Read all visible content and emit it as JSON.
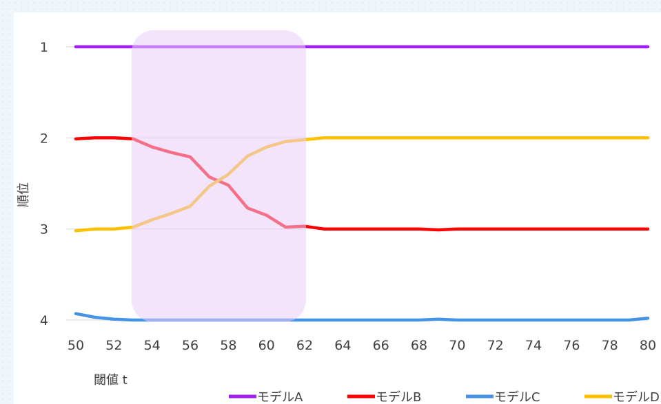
{
  "chart_data": {
    "type": "line",
    "xlabel": "閾値 t",
    "ylabel": "順位",
    "x": [
      50,
      51,
      52,
      53,
      54,
      55,
      56,
      57,
      58,
      59,
      60,
      61,
      62,
      63,
      64,
      65,
      66,
      67,
      68,
      69,
      70,
      71,
      72,
      73,
      74,
      75,
      76,
      77,
      78,
      79,
      80
    ],
    "xticks": [
      50,
      52,
      54,
      56,
      58,
      60,
      62,
      64,
      66,
      68,
      70,
      72,
      74,
      76,
      78,
      80
    ],
    "yticks": [
      1,
      2,
      3,
      4
    ],
    "ylim": [
      1,
      4
    ],
    "y_inverted": true,
    "grid": true,
    "legend_position": "bottom",
    "highlight_range": [
      53,
      62
    ],
    "highlight_color": "#e9ccf8",
    "series": [
      {
        "name": "モデルA",
        "color": "#a020f0",
        "values": [
          1,
          1,
          1,
          1,
          1,
          1,
          1,
          1,
          1,
          1,
          1,
          1,
          1,
          1,
          1,
          1,
          1,
          1,
          1,
          1,
          1,
          1,
          1,
          1,
          1,
          1,
          1,
          1,
          1,
          1,
          1
        ]
      },
      {
        "name": "モデルB",
        "color": "#ff0000",
        "values": [
          2.01,
          2.0,
          2.0,
          2.01,
          2.1,
          2.16,
          2.21,
          2.43,
          2.52,
          2.77,
          2.85,
          2.98,
          2.97,
          3.0,
          3.0,
          3.0,
          3.0,
          3.0,
          3.0,
          3.01,
          3.0,
          3.0,
          3.0,
          3.0,
          3.0,
          3.0,
          3.0,
          3.0,
          3.0,
          3.0,
          3.0
        ]
      },
      {
        "name": "モデルC",
        "color": "#4493e6",
        "values": [
          3.93,
          3.97,
          3.99,
          4.0,
          4.0,
          4.0,
          4.0,
          4.0,
          4.0,
          4.0,
          4.0,
          4.0,
          4.0,
          4.0,
          4.0,
          4.0,
          4.0,
          4.0,
          4.0,
          3.99,
          4.0,
          4.0,
          4.0,
          4.0,
          4.0,
          4.0,
          4.0,
          4.0,
          4.0,
          4.0,
          3.98
        ]
      },
      {
        "name": "モデルD",
        "color": "#ffc000",
        "values": [
          3.02,
          3.0,
          3.0,
          2.98,
          2.9,
          2.83,
          2.75,
          2.53,
          2.4,
          2.2,
          2.1,
          2.04,
          2.02,
          2.0,
          2.0,
          2.0,
          2.0,
          2.0,
          2.0,
          2.0,
          2.0,
          2.0,
          2.0,
          2.0,
          2.0,
          2.0,
          2.0,
          2.0,
          2.0,
          2.0,
          2.0
        ]
      }
    ]
  }
}
